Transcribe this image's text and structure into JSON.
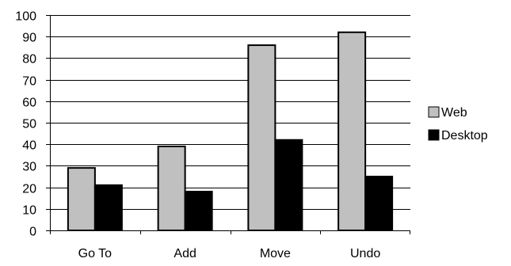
{
  "chart_data": {
    "type": "bar",
    "categories": [
      "Go To",
      "Add",
      "Move",
      "Undo"
    ],
    "series": [
      {
        "name": "Web",
        "values": [
          29,
          39,
          86,
          92
        ],
        "color": "#c0c0c0"
      },
      {
        "name": "Desktop",
        "values": [
          21,
          18,
          42,
          25
        ],
        "color": "#000000"
      }
    ],
    "ylim": [
      0,
      100
    ],
    "yticks": [
      0,
      10,
      20,
      30,
      40,
      50,
      60,
      70,
      80,
      90,
      100
    ],
    "title": "",
    "xlabel": "",
    "ylabel": "",
    "grid": true,
    "legend_position": "right"
  }
}
